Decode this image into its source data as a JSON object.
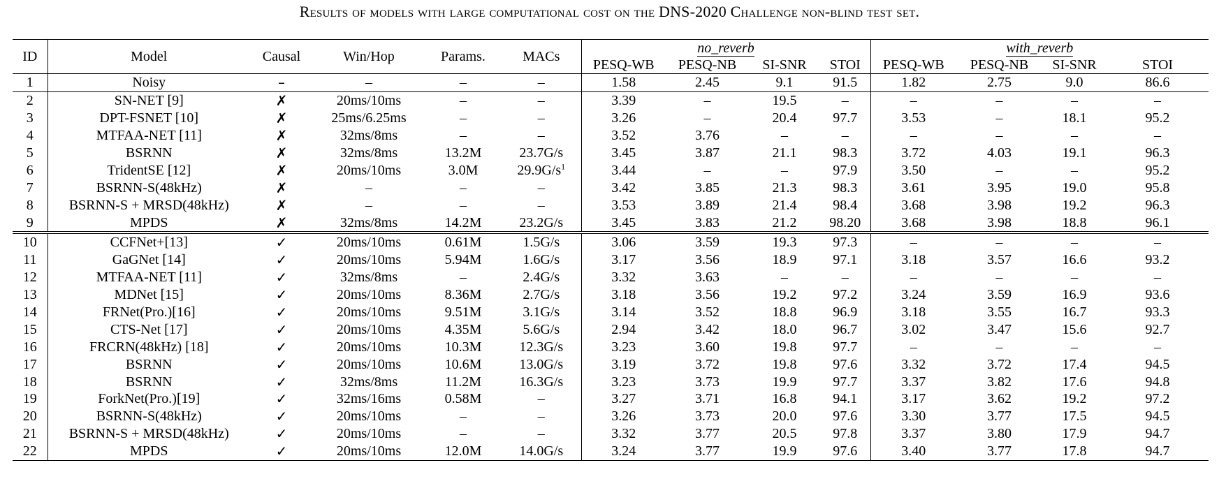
{
  "caption": "Results of models with large computational cost on the DNS-2020 Challenge non-blind test set.",
  "headers": {
    "id": "ID",
    "model": "Model",
    "causal": "Causal",
    "winhop": "Win/Hop",
    "params": "Params.",
    "macs": "MACs",
    "group_no_reverb": "no_reverb",
    "group_with_reverb": "with_reverb",
    "pesq_wb": "PESQ-WB",
    "pesq_nb": "PESQ-NB",
    "si_snr": "SI-SNR",
    "stoi": "STOI"
  },
  "rows": [
    {
      "id": "1",
      "model": "Noisy",
      "causal": "–",
      "winhop": "–",
      "params": "–",
      "macs": "–",
      "macs_sup": "",
      "nr": [
        "1.58",
        "2.45",
        "9.1",
        "91.5"
      ],
      "wr": [
        "1.82",
        "2.75",
        "9.0",
        "86.6"
      ]
    },
    {
      "id": "2",
      "model": "SN-NET [9]",
      "causal": "✗",
      "winhop": "20ms/10ms",
      "params": "–",
      "macs": "–",
      "macs_sup": "",
      "nr": [
        "3.39",
        "–",
        "19.5",
        "–"
      ],
      "wr": [
        "–",
        "–",
        "–",
        "–"
      ]
    },
    {
      "id": "3",
      "model": "DPT-FSNET [10]",
      "causal": "✗",
      "winhop": "25ms/6.25ms",
      "params": "–",
      "macs": "–",
      "macs_sup": "",
      "nr": [
        "3.26",
        "–",
        "20.4",
        "97.7"
      ],
      "wr": [
        "3.53",
        "–",
        "18.1",
        "95.2"
      ]
    },
    {
      "id": "4",
      "model": "MTFAA-NET [11]",
      "causal": "✗",
      "winhop": "32ms/8ms",
      "params": "–",
      "macs": "–",
      "macs_sup": "",
      "nr": [
        "3.52",
        "3.76",
        "–",
        "–"
      ],
      "wr": [
        "–",
        "–",
        "–",
        "–"
      ]
    },
    {
      "id": "5",
      "model": "BSRNN",
      "causal": "✗",
      "winhop": "32ms/8ms",
      "params": "13.2M",
      "macs": "23.7G/s",
      "macs_sup": "",
      "nr": [
        "3.45",
        "3.87",
        "21.1",
        "98.3"
      ],
      "wr": [
        "3.72",
        "4.03",
        "19.1",
        "96.3"
      ]
    },
    {
      "id": "6",
      "model": "TridentSE [12]",
      "causal": "✗",
      "winhop": "20ms/10ms",
      "params": "3.0M",
      "macs": "29.9G/s",
      "macs_sup": "1",
      "nr": [
        "3.44",
        "–",
        "–",
        "97.9"
      ],
      "wr": [
        "3.50",
        "–",
        "–",
        "95.2"
      ]
    },
    {
      "id": "7",
      "model": "BSRNN-S(48kHz)",
      "causal": "✗",
      "winhop": "–",
      "params": "–",
      "macs": "–",
      "macs_sup": "",
      "nr": [
        "3.42",
        "3.85",
        "21.3",
        "98.3"
      ],
      "wr": [
        "3.61",
        "3.95",
        "19.0",
        "95.8"
      ]
    },
    {
      "id": "8",
      "model": "BSRNN-S + MRSD(48kHz)",
      "causal": "✗",
      "winhop": "–",
      "params": "–",
      "macs": "–",
      "macs_sup": "",
      "nr": [
        "3.53",
        "3.89",
        "21.4",
        "98.4"
      ],
      "wr": [
        "3.68",
        "3.98",
        "19.2",
        "96.3"
      ]
    },
    {
      "id": "9",
      "model": "MPDS",
      "causal": "✗",
      "winhop": "32ms/8ms",
      "params": "14.2M",
      "macs": "23.2G/s",
      "macs_sup": "",
      "nr": [
        "3.45",
        "3.83",
        "21.2",
        "98.20"
      ],
      "wr": [
        "3.68",
        "3.98",
        "18.8",
        "96.1"
      ]
    },
    {
      "id": "10",
      "model": "CCFNet+[13]",
      "causal": "✓",
      "winhop": "20ms/10ms",
      "params": "0.61M",
      "macs": "1.5G/s",
      "macs_sup": "",
      "nr": [
        "3.06",
        "3.59",
        "19.3",
        "97.3"
      ],
      "wr": [
        "–",
        "–",
        "–",
        "–"
      ]
    },
    {
      "id": "11",
      "model": "GaGNet [14]",
      "causal": "✓",
      "winhop": "20ms/10ms",
      "params": "5.94M",
      "macs": "1.6G/s",
      "macs_sup": "",
      "nr": [
        "3.17",
        "3.56",
        "18.9",
        "97.1"
      ],
      "wr": [
        "3.18",
        "3.57",
        "16.6",
        "93.2"
      ]
    },
    {
      "id": "12",
      "model": "MTFAA-NET [11]",
      "causal": "✓",
      "winhop": "32ms/8ms",
      "params": "–",
      "macs": "2.4G/s",
      "macs_sup": "",
      "nr": [
        "3.32",
        "3.63",
        "–",
        "–"
      ],
      "wr": [
        "–",
        "–",
        "–",
        "–"
      ]
    },
    {
      "id": "13",
      "model": "MDNet [15]",
      "causal": "✓",
      "winhop": "20ms/10ms",
      "params": "8.36M",
      "macs": "2.7G/s",
      "macs_sup": "",
      "nr": [
        "3.18",
        "3.56",
        "19.2",
        "97.2"
      ],
      "wr": [
        "3.24",
        "3.59",
        "16.9",
        "93.6"
      ]
    },
    {
      "id": "14",
      "model": "FRNet(Pro.)[16]",
      "causal": "✓",
      "winhop": "20ms/10ms",
      "params": "9.51M",
      "macs": "3.1G/s",
      "macs_sup": "",
      "nr": [
        "3.14",
        "3.52",
        "18.8",
        "96.9"
      ],
      "wr": [
        "3.18",
        "3.55",
        "16.7",
        "93.3"
      ]
    },
    {
      "id": "15",
      "model": "CTS-Net [17]",
      "causal": "✓",
      "winhop": "20ms/10ms",
      "params": "4.35M",
      "macs": "5.6G/s",
      "macs_sup": "",
      "nr": [
        "2.94",
        "3.42",
        "18.0",
        "96.7"
      ],
      "wr": [
        "3.02",
        "3.47",
        "15.6",
        "92.7"
      ]
    },
    {
      "id": "16",
      "model": "FRCRN(48kHz) [18]",
      "causal": "✓",
      "winhop": "20ms/10ms",
      "params": "10.3M",
      "macs": "12.3G/s",
      "macs_sup": "",
      "nr": [
        "3.23",
        "3.60",
        "19.8",
        "97.7"
      ],
      "wr": [
        "–",
        "–",
        "–",
        "–"
      ]
    },
    {
      "id": "17",
      "model": "BSRNN",
      "causal": "✓",
      "winhop": "20ms/10ms",
      "params": "10.6M",
      "macs": "13.0G/s",
      "macs_sup": "",
      "nr": [
        "3.19",
        "3.72",
        "19.8",
        "97.6"
      ],
      "wr": [
        "3.32",
        "3.72",
        "17.4",
        "94.5"
      ]
    },
    {
      "id": "18",
      "model": "BSRNN",
      "causal": "✓",
      "winhop": "32ms/8ms",
      "params": "11.2M",
      "macs": "16.3G/s",
      "macs_sup": "",
      "nr": [
        "3.23",
        "3.73",
        "19.9",
        "97.7"
      ],
      "wr": [
        "3.37",
        "3.82",
        "17.6",
        "94.8"
      ]
    },
    {
      "id": "19",
      "model": "ForkNet(Pro.)[19]",
      "causal": "✓",
      "winhop": "32ms/16ms",
      "params": "0.58M",
      "macs": "–",
      "macs_sup": "",
      "nr": [
        "3.27",
        "3.71",
        "16.8",
        "94.1"
      ],
      "wr": [
        "3.17",
        "3.62",
        "19.2",
        "97.2"
      ]
    },
    {
      "id": "20",
      "model": "BSRNN-S(48kHz)",
      "causal": "✓",
      "winhop": "20ms/10ms",
      "params": "–",
      "macs": "–",
      "macs_sup": "",
      "nr": [
        "3.26",
        "3.73",
        "20.0",
        "97.6"
      ],
      "wr": [
        "3.30",
        "3.77",
        "17.5",
        "94.5"
      ]
    },
    {
      "id": "21",
      "model": "BSRNN-S + MRSD(48kHz)",
      "causal": "✓",
      "winhop": "20ms/10ms",
      "params": "–",
      "macs": "–",
      "macs_sup": "",
      "nr": [
        "3.32",
        "3.77",
        "20.5",
        "97.8"
      ],
      "wr": [
        "3.37",
        "3.80",
        "17.9",
        "94.7"
      ]
    },
    {
      "id": "22",
      "model": "MPDS",
      "causal": "✓",
      "winhop": "20ms/10ms",
      "params": "12.0M",
      "macs": "14.0G/s",
      "macs_sup": "",
      "nr": [
        "3.24",
        "3.77",
        "19.9",
        "97.6"
      ],
      "wr": [
        "3.40",
        "3.77",
        "17.8",
        "94.7"
      ]
    }
  ]
}
